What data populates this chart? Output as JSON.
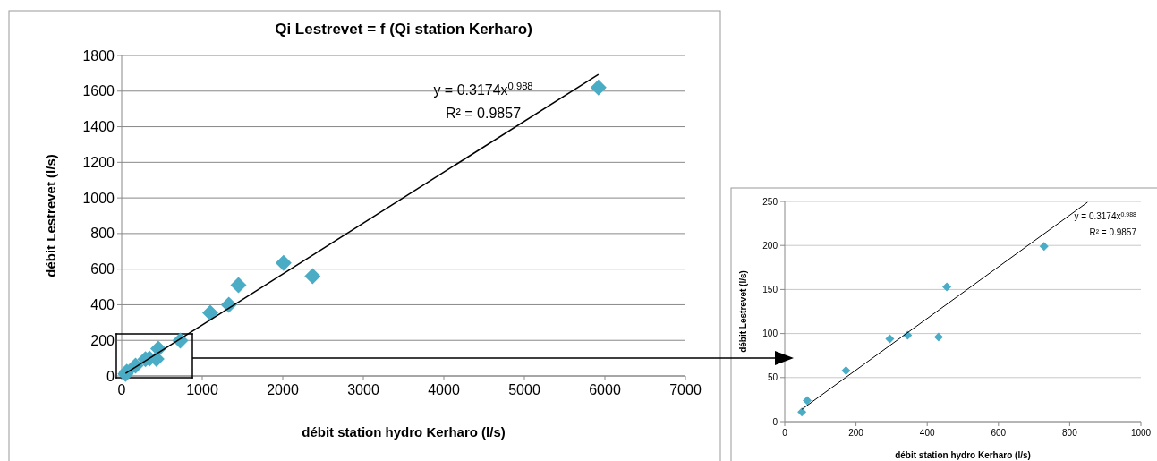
{
  "chart_data": [
    {
      "type": "scatter",
      "title": "Qi Lestrevet = f (Qi station Kerharo)",
      "xlabel": "débit station hydro Kerharo (l/s)",
      "ylabel": "débit Lestrevet (l/s)",
      "xlim": [
        0,
        7000
      ],
      "xticks": [
        0,
        1000,
        2000,
        3000,
        4000,
        5000,
        6000,
        7000
      ],
      "ylim": [
        0,
        1800
      ],
      "yticks": [
        0,
        200,
        400,
        600,
        800,
        1000,
        1200,
        1400,
        1600,
        1800
      ],
      "grid": "y",
      "annotations": [
        "y = 0.3174x$^{0.988}$",
        "R² = 0.9857"
      ],
      "series": [
        {
          "type": "scatter",
          "marker": "diamond",
          "color": "#4bacc6",
          "x": [
            48,
            63,
            172,
            295,
            345,
            432,
            455,
            728,
            1100,
            1330,
            1450,
            2010,
            2370,
            5920
          ],
          "values": [
            11,
            24,
            58,
            94,
            98,
            96,
            153,
            199,
            355,
            400,
            510,
            635,
            560,
            1620
          ]
        },
        {
          "type": "line",
          "color": "#000000",
          "x": [
            48,
            5920
          ],
          "values": [
            14,
            1694
          ]
        }
      ]
    },
    {
      "type": "scatter",
      "xlabel": "débit station hydro Kerharo (l/s)",
      "ylabel": "débit Lestrevet (l/s)",
      "xlim": [
        0,
        1000
      ],
      "xticks": [
        0,
        200,
        400,
        600,
        800,
        1000
      ],
      "ylim": [
        0,
        250
      ],
      "yticks": [
        0,
        50,
        100,
        150,
        200,
        250
      ],
      "grid": "y",
      "annotations": [
        "y = 0.3174x$^{0.988}$",
        "R² = 0.9857"
      ],
      "series": [
        {
          "type": "scatter",
          "marker": "diamond",
          "color": "#4bacc6",
          "x": [
            48,
            63,
            172,
            295,
            345,
            432,
            455,
            728
          ],
          "values": [
            11,
            24,
            58,
            94,
            98,
            96,
            153,
            199
          ]
        },
        {
          "type": "line",
          "color": "#000000",
          "x": [
            48,
            850
          ],
          "values": [
            14,
            249
          ]
        }
      ]
    }
  ]
}
